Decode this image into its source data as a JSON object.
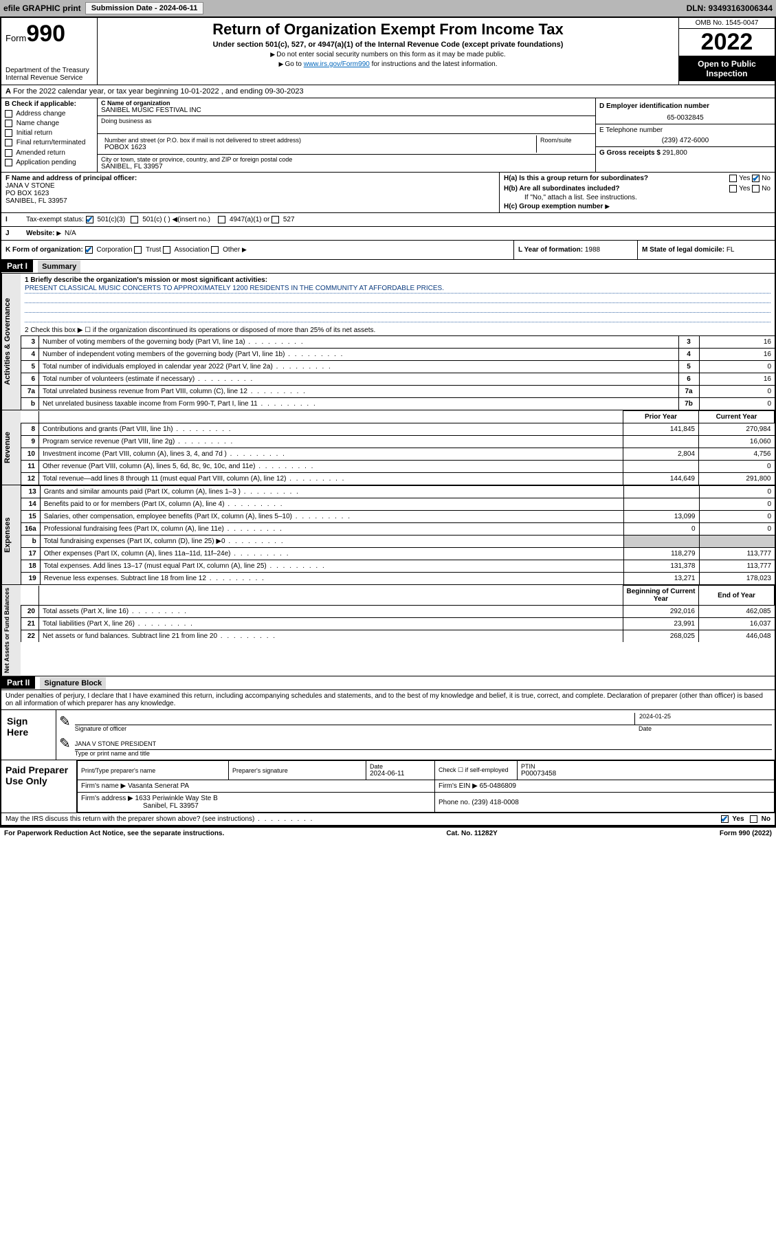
{
  "topbar": {
    "efile": "efile GRAPHIC print",
    "submission_label": "Submission Date - 2024-06-11",
    "dln": "DLN: 93493163006344"
  },
  "header": {
    "form_word": "Form",
    "form_num": "990",
    "dept": "Department of the Treasury",
    "irs": "Internal Revenue Service",
    "title": "Return of Organization Exempt From Income Tax",
    "subtitle": "Under section 501(c), 527, or 4947(a)(1) of the Internal Revenue Code (except private foundations)",
    "note1": "Do not enter social security numbers on this form as it may be made public.",
    "note2_pre": "Go to ",
    "note2_link": "www.irs.gov/Form990",
    "note2_post": " for instructions and the latest information.",
    "omb": "OMB No. 1545-0047",
    "year": "2022",
    "open": "Open to Public Inspection"
  },
  "row_a": "For the 2022 calendar year, or tax year beginning 10-01-2022   , and ending 09-30-2023",
  "section_b": {
    "label": "B Check if applicable:",
    "items": [
      "Address change",
      "Name change",
      "Initial return",
      "Final return/terminated",
      "Amended return",
      "Application pending"
    ]
  },
  "section_c": {
    "name_label": "C Name of organization",
    "name": "SANIBEL MUSIC FESTIVAL INC",
    "dba_label": "Doing business as",
    "dba": "",
    "street_label": "Number and street (or P.O. box if mail is not delivered to street address)",
    "room_label": "Room/suite",
    "street": "POBOX 1623",
    "city_label": "City or town, state or province, country, and ZIP or foreign postal code",
    "city": "SANIBEL, FL  33957"
  },
  "section_d": {
    "ein_label": "D Employer identification number",
    "ein": "65-0032845",
    "phone_label": "E Telephone number",
    "phone": "(239) 472-6000",
    "gross_label": "G Gross receipts $",
    "gross": "291,800"
  },
  "section_f": {
    "label": "F Name and address of principal officer:",
    "name": "JANA V STONE",
    "addr1": "PO BOX 1623",
    "addr2": "SANIBEL, FL  33957"
  },
  "section_h": {
    "a_label": "H(a)  Is this a group return for subordinates?",
    "a_yes": "Yes",
    "a_no": "No",
    "b_label": "H(b)  Are all subordinates included?",
    "b_yes": "Yes",
    "b_no": "No",
    "b_note": "If \"No,\" attach a list. See instructions.",
    "c_label": "H(c)  Group exemption number"
  },
  "row_i": {
    "label": "Tax-exempt status:",
    "o1": "501(c)(3)",
    "o2": "501(c) (  )",
    "o2b": "(insert no.)",
    "o3": "4947(a)(1) or",
    "o4": "527"
  },
  "row_j": {
    "label": "Website:",
    "val": "N/A"
  },
  "row_k": {
    "label": "K Form of organization:",
    "corp": "Corporation",
    "trust": "Trust",
    "assoc": "Association",
    "other": "Other"
  },
  "row_l": {
    "label": "L Year of formation:",
    "val": "1988"
  },
  "row_m": {
    "label": "M State of legal domicile:",
    "val": "FL"
  },
  "part1": {
    "hdr": "Part I",
    "title": "Summary"
  },
  "summary": {
    "q1_label": "1  Briefly describe the organization's mission or most significant activities:",
    "q1_text": "PRESENT CLASSICAL MUSIC CONCERTS TO APPROXIMATELY 1200 RESIDENTS IN THE COMMUNITY AT AFFORDABLE PRICES.",
    "q2": "2   Check this box ▶ ☐  if the organization discontinued its operations or disposed of more than 25% of its net assets.",
    "rows_gov": [
      {
        "n": "3",
        "lab": "Number of voting members of the governing body (Part VI, line 1a)",
        "box": "3",
        "v": "16"
      },
      {
        "n": "4",
        "lab": "Number of independent voting members of the governing body (Part VI, line 1b)",
        "box": "4",
        "v": "16"
      },
      {
        "n": "5",
        "lab": "Total number of individuals employed in calendar year 2022 (Part V, line 2a)",
        "box": "5",
        "v": "0"
      },
      {
        "n": "6",
        "lab": "Total number of volunteers (estimate if necessary)",
        "box": "6",
        "v": "16"
      },
      {
        "n": "7a",
        "lab": "Total unrelated business revenue from Part VIII, column (C), line 12",
        "box": "7a",
        "v": "0"
      },
      {
        "n": "b",
        "lab": "Net unrelated business taxable income from Form 990-T, Part I, line 11",
        "box": "7b",
        "v": "0"
      }
    ],
    "col_prior": "Prior Year",
    "col_curr": "Current Year",
    "rows_rev": [
      {
        "n": "8",
        "lab": "Contributions and grants (Part VIII, line 1h)",
        "p": "141,845",
        "c": "270,984"
      },
      {
        "n": "9",
        "lab": "Program service revenue (Part VIII, line 2g)",
        "p": "",
        "c": "16,060"
      },
      {
        "n": "10",
        "lab": "Investment income (Part VIII, column (A), lines 3, 4, and 7d )",
        "p": "2,804",
        "c": "4,756"
      },
      {
        "n": "11",
        "lab": "Other revenue (Part VIII, column (A), lines 5, 6d, 8c, 9c, 10c, and 11e)",
        "p": "",
        "c": "0"
      },
      {
        "n": "12",
        "lab": "Total revenue—add lines 8 through 11 (must equal Part VIII, column (A), line 12)",
        "p": "144,649",
        "c": "291,800"
      }
    ],
    "rows_exp": [
      {
        "n": "13",
        "lab": "Grants and similar amounts paid (Part IX, column (A), lines 1–3 )",
        "p": "",
        "c": "0"
      },
      {
        "n": "14",
        "lab": "Benefits paid to or for members (Part IX, column (A), line 4)",
        "p": "",
        "c": "0"
      },
      {
        "n": "15",
        "lab": "Salaries, other compensation, employee benefits (Part IX, column (A), lines 5–10)",
        "p": "13,099",
        "c": "0"
      },
      {
        "n": "16a",
        "lab": "Professional fundraising fees (Part IX, column (A), line 11e)",
        "p": "0",
        "c": "0"
      },
      {
        "n": "b",
        "lab": "Total fundraising expenses (Part IX, column (D), line 25) ▶0",
        "p": "shade",
        "c": "shade"
      },
      {
        "n": "17",
        "lab": "Other expenses (Part IX, column (A), lines 11a–11d, 11f–24e)",
        "p": "118,279",
        "c": "113,777"
      },
      {
        "n": "18",
        "lab": "Total expenses. Add lines 13–17 (must equal Part IX, column (A), line 25)",
        "p": "131,378",
        "c": "113,777"
      },
      {
        "n": "19",
        "lab": "Revenue less expenses. Subtract line 18 from line 12",
        "p": "13,271",
        "c": "178,023"
      }
    ],
    "col_beg": "Beginning of Current Year",
    "col_end": "End of Year",
    "rows_net": [
      {
        "n": "20",
        "lab": "Total assets (Part X, line 16)",
        "p": "292,016",
        "c": "462,085"
      },
      {
        "n": "21",
        "lab": "Total liabilities (Part X, line 26)",
        "p": "23,991",
        "c": "16,037"
      },
      {
        "n": "22",
        "lab": "Net assets or fund balances. Subtract line 21 from line 20",
        "p": "268,025",
        "c": "446,048"
      }
    ]
  },
  "part2": {
    "hdr": "Part II",
    "title": "Signature Block"
  },
  "sig_intro": "Under penalties of perjury, I declare that I have examined this return, including accompanying schedules and statements, and to the best of my knowledge and belief, it is true, correct, and complete. Declaration of preparer (other than officer) is based on all information of which preparer has any knowledge.",
  "sign": {
    "label": "Sign Here",
    "sig_of_officer": "Signature of officer",
    "date_label": "Date",
    "date": "2024-01-25",
    "name": "JANA V STONE PRESIDENT",
    "name_label": "Type or print name and title"
  },
  "paid": {
    "label": "Paid Preparer Use Only",
    "h1": "Print/Type preparer's name",
    "h2": "Preparer's signature",
    "h3": "Date",
    "h3v": "2024-06-11",
    "h4": "Check ☐ if self-employed",
    "h5": "PTIN",
    "h5v": "P00073458",
    "firm_name_label": "Firm's name    ▶",
    "firm_name": "Vasanta Senerat PA",
    "firm_ein_label": "Firm's EIN ▶",
    "firm_ein": "65-0486809",
    "firm_addr_label": "Firm's address ▶",
    "firm_addr1": "1633 Periwinkle Way Ste B",
    "firm_addr2": "Sanibel, FL  33957",
    "phone_label": "Phone no.",
    "phone": "(239) 418-0008"
  },
  "discuss": {
    "q": "May the IRS discuss this return with the preparer shown above? (see instructions)",
    "yes": "Yes",
    "no": "No"
  },
  "footer": {
    "left": "For Paperwork Reduction Act Notice, see the separate instructions.",
    "mid": "Cat. No. 11282Y",
    "right": "Form 990 (2022)"
  },
  "tabs": {
    "gov": "Activities & Governance",
    "rev": "Revenue",
    "exp": "Expenses",
    "net": "Net Assets or Fund Balances"
  }
}
